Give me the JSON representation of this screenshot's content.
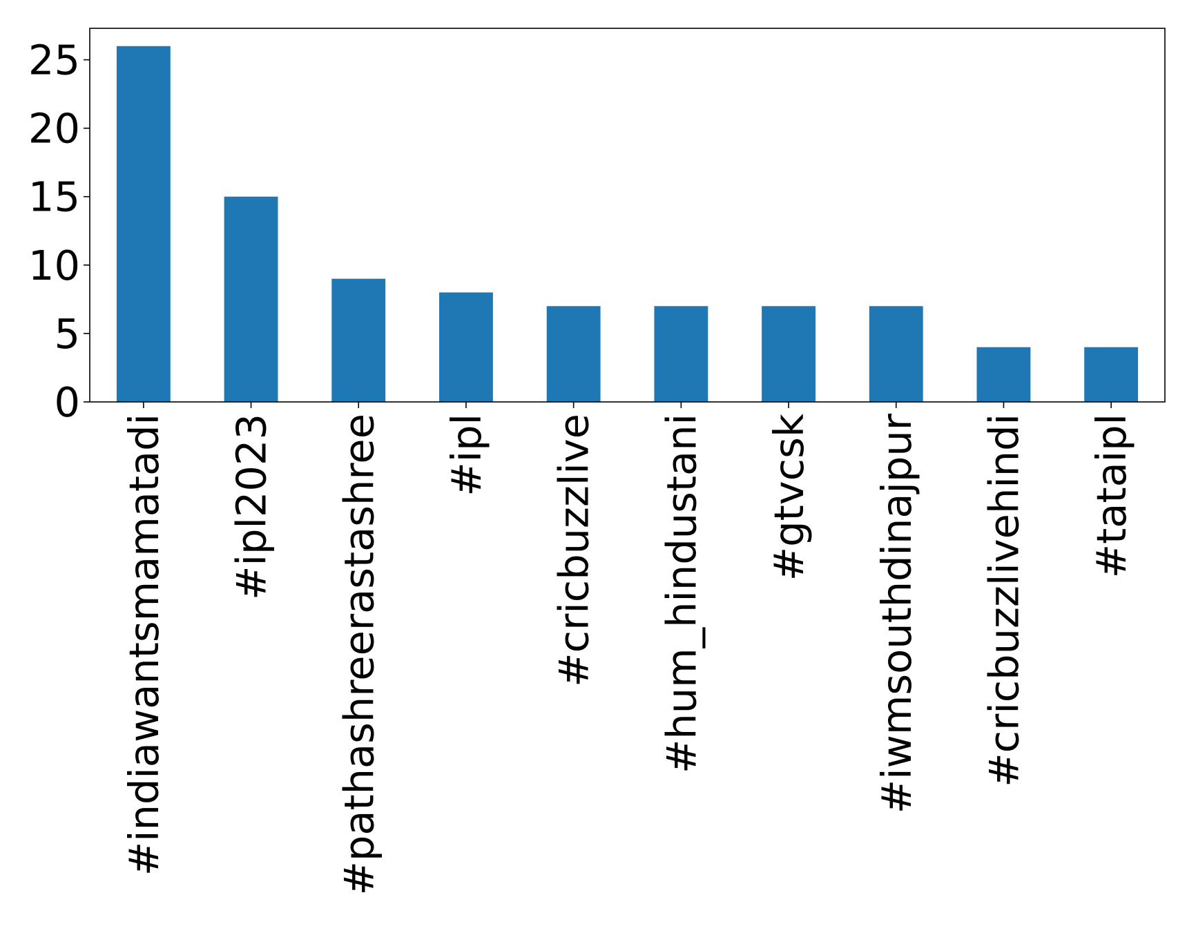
{
  "chart_data": {
    "type": "bar",
    "categories": [
      "#indiawantsmamatadi",
      "#ipl2023",
      "#pathashreerastashree",
      "#ipl",
      "#cricbuzzlive",
      "#hum_hindustani",
      "#gtvcsk",
      "#iwmsouthdinajpur",
      "#cricbuzzlivehindi",
      "#tataipl"
    ],
    "values": [
      26,
      15,
      9,
      8,
      7,
      7,
      7,
      7,
      4,
      4
    ],
    "title": "",
    "xlabel": "",
    "ylabel": "",
    "ylim": [
      0,
      27.3
    ],
    "yticks": [
      0,
      5,
      10,
      15,
      20,
      25
    ],
    "grid": false,
    "bar_color": "#1f77b4",
    "axis_color": "#000000"
  }
}
